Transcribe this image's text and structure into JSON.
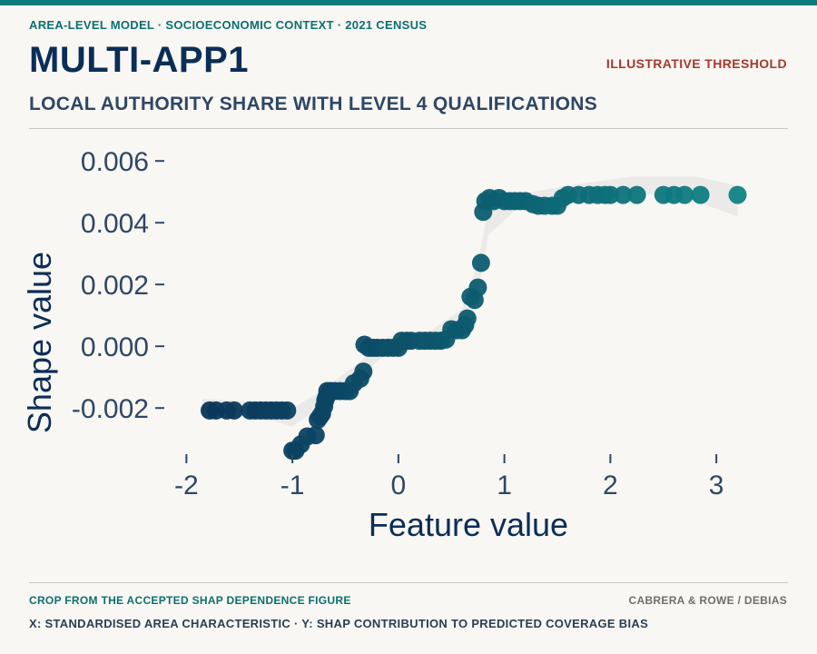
{
  "header": {
    "kicker": "AREA-LEVEL MODEL · SOCIOECONOMIC CONTEXT · 2021 CENSUS",
    "title": "MULTI-APP1",
    "badge": "ILLUSTRATIVE THRESHOLD",
    "subtitle": "LOCAL AUTHORITY SHARE WITH LEVEL 4 QUALIFICATIONS"
  },
  "footer": {
    "source": "CROP FROM THE ACCEPTED SHAP DEPENDENCE FIGURE",
    "credit": "CABRERA & ROWE / DEBIAS",
    "note": "X: STANDARDISED AREA CHARACTERISTIC · Y: SHAP CONTRIBUTION TO PREDICTED COVERAGE BIAS"
  },
  "colors": {
    "accent": "#0c7a7a",
    "point_low": "#0b2e57",
    "point_high": "#0f8585",
    "threshold_red": "#a4392b",
    "smooth_band": "#e6e6e6"
  },
  "chart_data": {
    "type": "scatter",
    "title": "",
    "xlabel": "Feature value",
    "ylabel": "Shape value",
    "xlim": [
      -2.2,
      3.35
    ],
    "ylim": [
      -0.0037,
      0.0063
    ],
    "x_ticks": [
      -2,
      -1,
      0,
      1,
      2,
      3
    ],
    "x_tick_labels": [
      "-2",
      "-1",
      "0",
      "1",
      "2",
      "3"
    ],
    "y_ticks": [
      -0.002,
      0,
      0.002,
      0.004,
      0.006
    ],
    "y_tick_labels": [
      "-0.002",
      "0.000",
      "0.002",
      "0.004",
      "0.006"
    ],
    "grid": false,
    "legend": "none",
    "smooth_band": [
      [
        -1.85,
        -0.0022,
        -0.0017
      ],
      [
        -1.3,
        -0.0023,
        -0.0018
      ],
      [
        -1.0,
        -0.0026,
        -0.002
      ],
      [
        -0.75,
        -0.002,
        -0.0015
      ],
      [
        -0.4,
        -0.0011,
        -0.0006
      ],
      [
        -0.1,
        -0.0002,
        0.0003
      ],
      [
        0.3,
        0.0001,
        0.0005
      ],
      [
        0.6,
        0.0006,
        0.0012
      ],
      [
        0.75,
        0.0018,
        0.0027
      ],
      [
        0.85,
        0.0036,
        0.0045
      ],
      [
        1.1,
        0.0044,
        0.0049
      ],
      [
        1.6,
        0.0048,
        0.0052
      ],
      [
        2.2,
        0.005,
        0.0055
      ],
      [
        2.8,
        0.0047,
        0.0055
      ],
      [
        3.2,
        0.0042,
        0.0052
      ]
    ],
    "points": [
      {
        "x": -1.78,
        "y": -0.00208
      },
      {
        "x": -1.72,
        "y": -0.00208
      },
      {
        "x": -1.62,
        "y": -0.00208
      },
      {
        "x": -1.55,
        "y": -0.00208
      },
      {
        "x": -1.4,
        "y": -0.00208
      },
      {
        "x": -1.35,
        "y": -0.00208
      },
      {
        "x": -1.3,
        "y": -0.00208
      },
      {
        "x": -1.25,
        "y": -0.00208
      },
      {
        "x": -1.2,
        "y": -0.00208
      },
      {
        "x": -1.15,
        "y": -0.00208
      },
      {
        "x": -1.1,
        "y": -0.00208
      },
      {
        "x": -1.05,
        "y": -0.00208
      },
      {
        "x": -1.0,
        "y": -0.00338
      },
      {
        "x": -0.97,
        "y": -0.00338
      },
      {
        "x": -0.92,
        "y": -0.00318
      },
      {
        "x": -0.86,
        "y": -0.00292
      },
      {
        "x": -0.78,
        "y": -0.00288
      },
      {
        "x": -0.76,
        "y": -0.00238
      },
      {
        "x": -0.74,
        "y": -0.00228
      },
      {
        "x": -0.72,
        "y": -0.00218
      },
      {
        "x": -0.7,
        "y": -0.00195
      },
      {
        "x": -0.69,
        "y": -0.00175
      },
      {
        "x": -0.68,
        "y": -0.00165
      },
      {
        "x": -0.67,
        "y": -0.00145
      },
      {
        "x": -0.64,
        "y": -0.00145
      },
      {
        "x": -0.6,
        "y": -0.00145
      },
      {
        "x": -0.55,
        "y": -0.00145
      },
      {
        "x": -0.5,
        "y": -0.00145
      },
      {
        "x": -0.46,
        "y": -0.00145
      },
      {
        "x": -0.42,
        "y": -0.0012
      },
      {
        "x": -0.36,
        "y": -0.00105
      },
      {
        "x": -0.33,
        "y": -0.00082
      },
      {
        "x": -0.32,
        "y": 5e-05
      },
      {
        "x": -0.28,
        "y": -5e-05
      },
      {
        "x": -0.24,
        "y": -5e-05
      },
      {
        "x": -0.2,
        "y": -5e-05
      },
      {
        "x": -0.15,
        "y": -5e-05
      },
      {
        "x": -0.1,
        "y": -5e-05
      },
      {
        "x": -0.05,
        "y": -5e-05
      },
      {
        "x": 0.0,
        "y": -5e-05
      },
      {
        "x": 0.03,
        "y": 0.00018
      },
      {
        "x": 0.08,
        "y": 0.00018
      },
      {
        "x": 0.12,
        "y": 0.00018
      },
      {
        "x": 0.2,
        "y": 0.00018
      },
      {
        "x": 0.25,
        "y": 0.00018
      },
      {
        "x": 0.3,
        "y": 0.00018
      },
      {
        "x": 0.35,
        "y": 0.00018
      },
      {
        "x": 0.4,
        "y": 0.00018
      },
      {
        "x": 0.45,
        "y": 0.00022
      },
      {
        "x": 0.5,
        "y": 0.00055
      },
      {
        "x": 0.55,
        "y": 0.00052
      },
      {
        "x": 0.6,
        "y": 0.00052
      },
      {
        "x": 0.63,
        "y": 0.00068
      },
      {
        "x": 0.65,
        "y": 0.0009
      },
      {
        "x": 0.68,
        "y": 0.0016
      },
      {
        "x": 0.72,
        "y": 0.0015
      },
      {
        "x": 0.75,
        "y": 0.0019
      },
      {
        "x": 0.78,
        "y": 0.0027
      },
      {
        "x": 0.8,
        "y": 0.00435
      },
      {
        "x": 0.82,
        "y": 0.0047
      },
      {
        "x": 0.86,
        "y": 0.0048
      },
      {
        "x": 0.9,
        "y": 0.0047
      },
      {
        "x": 0.95,
        "y": 0.0048
      },
      {
        "x": 1.0,
        "y": 0.0047
      },
      {
        "x": 1.05,
        "y": 0.0047
      },
      {
        "x": 1.1,
        "y": 0.0047
      },
      {
        "x": 1.15,
        "y": 0.0047
      },
      {
        "x": 1.2,
        "y": 0.0047
      },
      {
        "x": 1.27,
        "y": 0.0046
      },
      {
        "x": 1.32,
        "y": 0.00455
      },
      {
        "x": 1.38,
        "y": 0.00455
      },
      {
        "x": 1.45,
        "y": 0.00455
      },
      {
        "x": 1.5,
        "y": 0.00455
      },
      {
        "x": 1.55,
        "y": 0.0048
      },
      {
        "x": 1.6,
        "y": 0.0049
      },
      {
        "x": 1.7,
        "y": 0.0049
      },
      {
        "x": 1.8,
        "y": 0.0049
      },
      {
        "x": 1.88,
        "y": 0.0049
      },
      {
        "x": 1.95,
        "y": 0.0049
      },
      {
        "x": 2.0,
        "y": 0.0049
      },
      {
        "x": 2.12,
        "y": 0.0049
      },
      {
        "x": 2.25,
        "y": 0.0049
      },
      {
        "x": 2.5,
        "y": 0.0049
      },
      {
        "x": 2.6,
        "y": 0.0049
      },
      {
        "x": 2.7,
        "y": 0.0049
      },
      {
        "x": 2.85,
        "y": 0.0049
      },
      {
        "x": 3.2,
        "y": 0.0049
      }
    ]
  }
}
